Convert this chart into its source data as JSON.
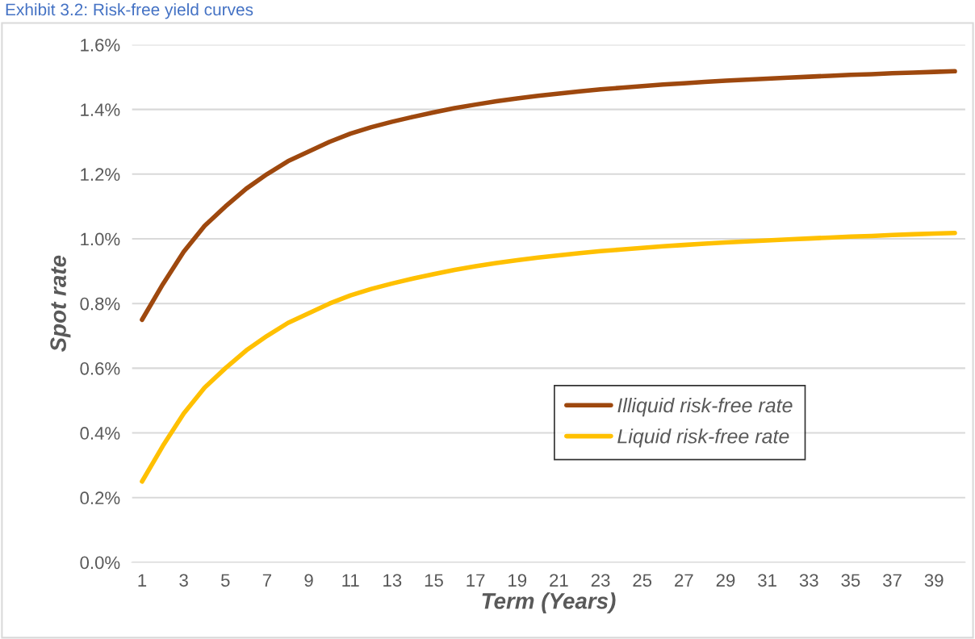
{
  "chart_data": {
    "type": "line",
    "title": "Exhibit 3.2: Risk-free yield curves",
    "xlabel": "Term (Years)",
    "ylabel": "Spot rate",
    "x": [
      1,
      2,
      3,
      4,
      5,
      6,
      7,
      8,
      9,
      10,
      11,
      12,
      13,
      14,
      15,
      16,
      17,
      18,
      19,
      20,
      21,
      22,
      23,
      24,
      25,
      26,
      27,
      28,
      29,
      30,
      31,
      32,
      33,
      34,
      35,
      36,
      37,
      38,
      39,
      40
    ],
    "series": [
      {
        "name": "Illiquid risk-free rate",
        "color": "#9e480e",
        "values": [
          0.75,
          0.86,
          0.96,
          1.04,
          1.1,
          1.155,
          1.2,
          1.24,
          1.27,
          1.3,
          1.325,
          1.345,
          1.362,
          1.377,
          1.391,
          1.404,
          1.415,
          1.425,
          1.434,
          1.442,
          1.449,
          1.456,
          1.462,
          1.467,
          1.472,
          1.477,
          1.481,
          1.485,
          1.489,
          1.492,
          1.495,
          1.498,
          1.501,
          1.504,
          1.507,
          1.509,
          1.512,
          1.514,
          1.516,
          1.518
        ]
      },
      {
        "name": "Liquid risk-free rate",
        "color": "#ffc000",
        "values": [
          0.25,
          0.36,
          0.46,
          0.54,
          0.6,
          0.655,
          0.7,
          0.74,
          0.77,
          0.8,
          0.825,
          0.845,
          0.862,
          0.877,
          0.891,
          0.904,
          0.915,
          0.925,
          0.934,
          0.942,
          0.949,
          0.956,
          0.962,
          0.967,
          0.972,
          0.977,
          0.981,
          0.985,
          0.989,
          0.992,
          0.995,
          0.998,
          1.001,
          1.004,
          1.007,
          1.009,
          1.012,
          1.014,
          1.016,
          1.018
        ]
      }
    ],
    "xlim": [
      0.5,
      40.5
    ],
    "xticks": [
      1,
      3,
      5,
      7,
      9,
      11,
      13,
      15,
      17,
      19,
      21,
      23,
      25,
      27,
      29,
      31,
      33,
      35,
      37,
      39
    ],
    "ylim": [
      0,
      1.6
    ],
    "yticks": [
      {
        "value": 0,
        "label": "0.0%"
      },
      {
        "value": 0.2,
        "label": "0.2%"
      },
      {
        "value": 0.4,
        "label": "0.4%"
      },
      {
        "value": 0.6,
        "label": "0.6%"
      },
      {
        "value": 0.8,
        "label": "0.8%"
      },
      {
        "value": 1.0,
        "label": "1.0%"
      },
      {
        "value": 1.2,
        "label": "1.2%"
      },
      {
        "value": 1.4,
        "label": "1.4%"
      },
      {
        "value": 1.6,
        "label": "1.6%"
      }
    ],
    "grid": "y",
    "legend": "center right",
    "marker": "none",
    "line_style": "solid"
  }
}
